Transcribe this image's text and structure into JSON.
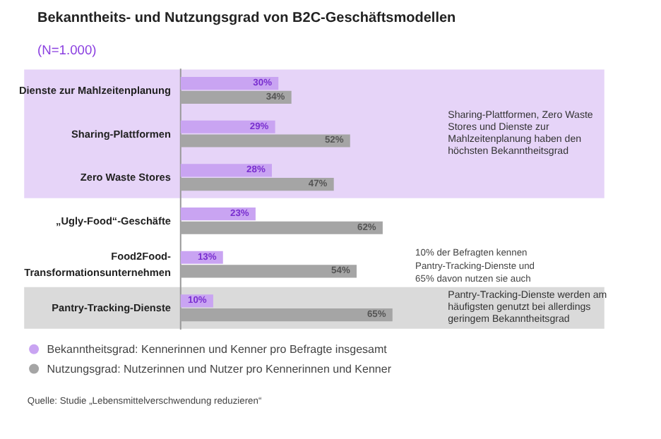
{
  "chart_data": {
    "type": "bar",
    "orientation": "horizontal",
    "title": "Bekanntheits- und Nutzungsgrad von B2C-Geschäftsmodellen",
    "subtitle": "(N=1.000)",
    "categories": [
      "Dienste zur Mahlzeitenplanung",
      "Sharing-Plattformen",
      "Zero Waste Stores",
      "„Ugly-Food“-Geschäfte",
      "Food2Food-Transformationsunternehmen",
      "Pantry-Tracking-Dienste"
    ],
    "series": [
      {
        "name": "Bekanntheitsgrad: Kennerinnen und Kenner pro Befragte insgesamt",
        "color": "#c9a4f2",
        "values": [
          30,
          29,
          28,
          23,
          13,
          10
        ],
        "value_labels": [
          "30%",
          "29%",
          "28%",
          "23%",
          "13%",
          "10%"
        ]
      },
      {
        "name": "Nutzungsgrad: Nutzerinnen und Nutzer pro Kennerinnen und Kenner",
        "color": "#a5a5a5",
        "values": [
          34,
          52,
          47,
          62,
          54,
          65
        ],
        "value_labels": [
          "34%",
          "52%",
          "47%",
          "62%",
          "54%",
          "65%"
        ]
      }
    ],
    "tick_labels": false,
    "legend": "bottom",
    "grid": false,
    "bands": [
      {
        "axis": "y",
        "from": "Dienste zur Mahlzeitenplanung",
        "to": "Zero Waste Stores",
        "label": "Sharing-Plattformen, Zero Waste Stores und Dienste zur Mahlzeitenplanung haben den höchsten Bekanntheitsgrad",
        "color": "#e6d4f8"
      },
      {
        "axis": "y",
        "from": "Pantry-Tracking-Dienste",
        "to": "Pantry-Tracking-Dienste",
        "label": "Pantry-Tracking-Dienste werden am häufigsten genutzt bei allerdings geringem Bekanntheitsgrad",
        "color": "#dadada"
      }
    ],
    "annotations": [
      "10% der Befragten kennen Pantry-Tracking-Dienste und 65% davon nutzen sie auch",
      "Quelle: Studie „Lebensmittelverschwendung reduzieren“"
    ]
  }
}
